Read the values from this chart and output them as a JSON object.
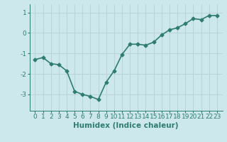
{
  "x": [
    0,
    1,
    2,
    3,
    4,
    5,
    6,
    7,
    8,
    9,
    10,
    11,
    12,
    13,
    14,
    15,
    16,
    17,
    18,
    19,
    20,
    21,
    22,
    23
  ],
  "y": [
    -1.3,
    -1.2,
    -1.5,
    -1.55,
    -1.85,
    -2.85,
    -3.0,
    -3.1,
    -3.25,
    -2.4,
    -1.85,
    -1.05,
    -0.55,
    -0.55,
    -0.6,
    -0.45,
    -0.1,
    0.15,
    0.25,
    0.45,
    0.7,
    0.65,
    0.85,
    0.85
  ],
  "line_color": "#2e7d6e",
  "marker": "D",
  "marker_size": 2.5,
  "bg_color": "#cce8ec",
  "grid_color": "#b8d4d8",
  "tick_color": "#2e7d6e",
  "label_color": "#2e7d6e",
  "xlabel": "Humidex (Indice chaleur)",
  "ylim": [
    -3.8,
    1.4
  ],
  "yticks": [
    -3,
    -2,
    -1,
    0,
    1
  ],
  "xticks": [
    0,
    1,
    2,
    3,
    4,
    5,
    6,
    7,
    8,
    9,
    10,
    11,
    12,
    13,
    14,
    15,
    16,
    17,
    18,
    19,
    20,
    21,
    22,
    23
  ],
  "xlabel_fontsize": 7.5,
  "tick_fontsize": 6.5,
  "linewidth": 1.2
}
